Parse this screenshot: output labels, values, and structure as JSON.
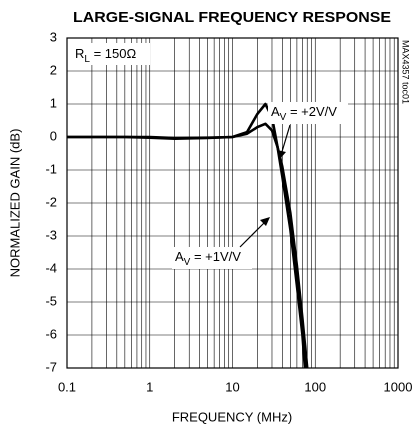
{
  "chart_data": {
    "type": "line",
    "title": "LARGE-SIGNAL FREQUENCY RESPONSE",
    "xlabel": "FREQUENCY (MHz)",
    "ylabel": "NORMALIZED GAIN (dB)",
    "xscale": "log",
    "xlim": [
      0.1,
      1000
    ],
    "ylim": [
      -7,
      3
    ],
    "xticks": [
      0.1,
      1,
      10,
      100,
      1000
    ],
    "xminorticks": [
      0.2,
      0.3,
      0.4,
      0.5,
      0.6,
      0.7,
      0.8,
      0.9,
      2,
      3,
      4,
      5,
      6,
      7,
      8,
      9,
      20,
      30,
      40,
      50,
      60,
      70,
      80,
      90,
      200,
      300,
      400,
      500,
      600,
      700,
      800,
      900
    ],
    "yticks": [
      3,
      2,
      1,
      0,
      -1,
      -2,
      -3,
      -4,
      -5,
      -6,
      -7
    ],
    "grid": true,
    "annotations": [
      {
        "text": "R",
        "sub": "L",
        "rest": " = 150Ω"
      },
      {
        "text": "A",
        "sub": "V",
        "rest": " = +2V/V"
      },
      {
        "text": "A",
        "sub": "V",
        "rest": " = +1V/V"
      },
      {
        "text": "MAX4357 toc01"
      }
    ],
    "series": [
      {
        "name": "AV = +1V/V",
        "color": "#000000",
        "x": [
          0.1,
          0.5,
          1,
          2,
          5,
          10,
          15,
          20,
          25,
          30,
          35,
          40,
          50,
          60,
          70,
          75
        ],
        "values": [
          0,
          0,
          -0.02,
          -0.05,
          -0.03,
          0,
          0.15,
          0.7,
          1.0,
          0.6,
          -0.3,
          -1.2,
          -2.8,
          -4.5,
          -6,
          -7
        ]
      },
      {
        "name": "AV = +2V/V",
        "color": "#000000",
        "x": [
          0.1,
          0.5,
          1,
          2,
          5,
          10,
          15,
          20,
          25,
          30,
          35,
          40,
          50,
          60,
          70,
          80
        ],
        "values": [
          0,
          0,
          0,
          -0.03,
          -0.02,
          0,
          0.1,
          0.3,
          0.4,
          0.2,
          -0.3,
          -0.9,
          -2.3,
          -3.9,
          -5.5,
          -7
        ]
      }
    ]
  }
}
